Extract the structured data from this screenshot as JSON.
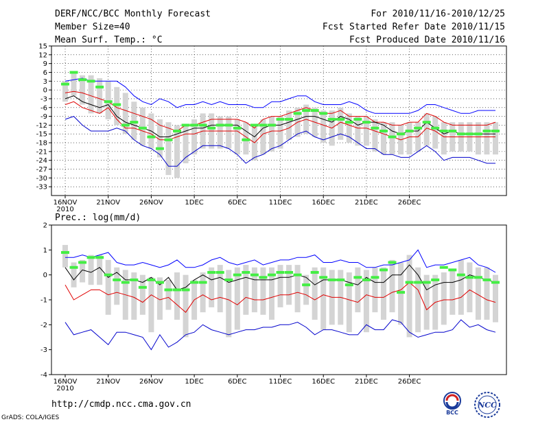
{
  "header": {
    "title": "DERF/NCC/BCC Monthly Forecast",
    "member_size": "Member Size=40",
    "variable": "Mean Surf. Temp.: °C",
    "period": "For 2010/11/16-2010/12/25",
    "start_date": "Fcst Started Refer Date 2010/11/15",
    "produced_date": "Fcst Produced Date 2010/11/16"
  },
  "footer": {
    "url": "http://cmdp.ncc.cma.gov.cn",
    "grads": "GrADS: COLA/IGES",
    "logo_bcc": "BCC",
    "logo_ncc": "NCC"
  },
  "colors": {
    "max_line": "#0000ff",
    "min_line": "#0000cc",
    "upper_line": "#e00000",
    "mean_line": "#000000",
    "obs_mark": "#44ee44",
    "box": "#d4d4d4"
  },
  "chart_data": [
    {
      "type": "line",
      "title": "Mean Surf. Temp.: °C",
      "x_tick_labels": [
        "16NOV",
        "21NOV",
        "26NOV",
        "1DEC",
        "6DEC",
        "11DEC",
        "16DEC",
        "21DEC",
        "26DEC"
      ],
      "x_year_label": "2010",
      "ylim": [
        -36,
        15
      ],
      "yticks": [
        15,
        12,
        9,
        6,
        3,
        0,
        -3,
        -6,
        -9,
        -12,
        -15,
        -18,
        -21,
        -24,
        -27,
        -30,
        -33
      ],
      "grid": true,
      "series": [
        {
          "name": "max",
          "values": [
            3,
            3.5,
            4,
            3,
            3,
            3,
            3,
            1,
            -2,
            -4,
            -5,
            -3,
            -4,
            -6,
            -5,
            -5,
            -4,
            -5,
            -4,
            -5,
            -5,
            -5,
            -6,
            -6,
            -4,
            -4,
            -3,
            -2,
            -2,
            -4,
            -5,
            -5,
            -5,
            -4,
            -5,
            -7,
            -8,
            -8,
            -8,
            -8,
            -8,
            -7,
            -5,
            -5,
            -6,
            -7,
            -8,
            -8,
            -7,
            -7,
            -7
          ]
        },
        {
          "name": "upper",
          "values": [
            -1,
            -0.5,
            -1,
            -2,
            -3,
            -4,
            -6,
            -7,
            -8,
            -9,
            -10,
            -12,
            -13,
            -14,
            -12,
            -12,
            -11,
            -10,
            -10,
            -10,
            -10,
            -11,
            -13,
            -10,
            -9,
            -9,
            -8,
            -7,
            -6,
            -7,
            -8,
            -8,
            -7,
            -9,
            -9,
            -9,
            -11,
            -11,
            -12,
            -12,
            -11,
            -11,
            -8,
            -9,
            -11,
            -12,
            -12,
            -12,
            -12,
            -12,
            -11
          ]
        },
        {
          "name": "mean",
          "values": [
            -3,
            -2,
            -4,
            -5,
            -6,
            -5,
            -9,
            -11,
            -12,
            -13,
            -14,
            -16,
            -16,
            -15,
            -14,
            -13,
            -13,
            -12,
            -12,
            -12,
            -12,
            -14,
            -16,
            -13,
            -12,
            -12,
            -11,
            -10,
            -9,
            -9,
            -10,
            -11,
            -9,
            -10,
            -12,
            -11,
            -11,
            -12,
            -14,
            -15,
            -14,
            -14,
            -11,
            -13,
            -15,
            -14,
            -15,
            -15,
            -15,
            -15,
            -15
          ]
        },
        {
          "name": "lower",
          "values": [
            -5,
            -4,
            -6,
            -7,
            -8,
            -6,
            -10,
            -13,
            -13,
            -14,
            -15,
            -17,
            -17,
            -16,
            -15,
            -15,
            -14,
            -14,
            -14,
            -14,
            -14,
            -16,
            -18,
            -15,
            -14,
            -14,
            -13,
            -11,
            -10,
            -11,
            -12,
            -13,
            -11,
            -12,
            -13,
            -13,
            -14,
            -15,
            -16,
            -17,
            -16,
            -16,
            -13,
            -14,
            -16,
            -16,
            -16,
            -16,
            -16,
            -16,
            -16
          ]
        },
        {
          "name": "min",
          "values": [
            -10,
            -9,
            -12,
            -14,
            -14,
            -14,
            -13,
            -14,
            -17,
            -19,
            -20,
            -22,
            -26,
            -26,
            -23,
            -21,
            -19,
            -19,
            -19,
            -20,
            -22,
            -25,
            -23,
            -22,
            -20,
            -19,
            -17,
            -15,
            -14,
            -16,
            -17,
            -16,
            -15,
            -16,
            -18,
            -20,
            -20,
            -22,
            -22,
            -23,
            -23,
            -21,
            -19,
            -21,
            -24,
            -23,
            -23,
            -23,
            -24,
            -25,
            -25
          ]
        },
        {
          "name": "observed",
          "values": [
            2,
            6,
            3.5,
            3,
            1,
            -4,
            -5,
            -12,
            -11,
            -13,
            -16,
            -20,
            -17,
            -14,
            -12,
            -12,
            -12,
            -13,
            -12,
            -12,
            -13,
            -17,
            -12,
            -12,
            -12,
            -10,
            -10,
            -8,
            -7,
            -7,
            -8,
            -10,
            -10,
            -11,
            -10,
            -11,
            -13,
            -14,
            -16,
            -15,
            -14,
            -13,
            -11,
            -13,
            -14,
            -14,
            -15,
            -15,
            -15,
            -14,
            -14
          ]
        }
      ],
      "box_ranges": [
        [
          3,
          -4
        ],
        [
          6,
          -2
        ],
        [
          5,
          -5
        ],
        [
          5,
          -8
        ],
        [
          4,
          -8
        ],
        [
          3,
          -10
        ],
        [
          1,
          -12
        ],
        [
          -1,
          -15
        ],
        [
          -4,
          -17
        ],
        [
          -6,
          -19
        ],
        [
          -8,
          -20
        ],
        [
          -10,
          -23
        ],
        [
          -11,
          -29
        ],
        [
          -12,
          -30
        ],
        [
          -12,
          -25
        ],
        [
          -10,
          -22
        ],
        [
          -8,
          -20
        ],
        [
          -8,
          -20
        ],
        [
          -9,
          -20
        ],
        [
          -9,
          -20
        ],
        [
          -10,
          -22
        ],
        [
          -11,
          -22
        ],
        [
          -12,
          -24
        ],
        [
          -10,
          -22
        ],
        [
          -9,
          -21
        ],
        [
          -9,
          -20
        ],
        [
          -7,
          -17
        ],
        [
          -6,
          -16
        ],
        [
          -5,
          -15
        ],
        [
          -6,
          -16
        ],
        [
          -7,
          -18
        ],
        [
          -7,
          -19
        ],
        [
          -6,
          -17
        ],
        [
          -8,
          -18
        ],
        [
          -9,
          -19
        ],
        [
          -9,
          -19
        ],
        [
          -10,
          -21
        ],
        [
          -11,
          -22
        ],
        [
          -11,
          -22
        ],
        [
          -12,
          -22
        ],
        [
          -11,
          -22
        ],
        [
          -11,
          -21
        ],
        [
          -8,
          -19
        ],
        [
          -9,
          -20
        ],
        [
          -11,
          -22
        ],
        [
          -11,
          -21
        ],
        [
          -11,
          -21
        ],
        [
          -11,
          -21
        ],
        [
          -11,
          -22
        ],
        [
          -11,
          -22
        ],
        [
          -11,
          -22
        ]
      ]
    },
    {
      "type": "line",
      "title": "Prec.: log(mm/d)",
      "x_tick_labels": [
        "16NOV",
        "21NOV",
        "26NOV",
        "1DEC",
        "6DEC",
        "11DEC",
        "16DEC",
        "21DEC",
        "26DEC"
      ],
      "x_year_label": "2010",
      "ylim": [
        -4,
        2
      ],
      "yticks": [
        2,
        1,
        0,
        -1,
        -2,
        -3,
        -4
      ],
      "grid": false,
      "series": [
        {
          "name": "max",
          "values": [
            0.7,
            0.7,
            0.8,
            0.7,
            0.8,
            0.9,
            0.5,
            0.4,
            0.4,
            0.5,
            0.4,
            0.3,
            0.4,
            0.6,
            0.3,
            0.3,
            0.4,
            0.6,
            0.7,
            0.5,
            0.4,
            0.5,
            0.6,
            0.4,
            0.5,
            0.6,
            0.6,
            0.7,
            0.7,
            0.8,
            0.5,
            0.5,
            0.6,
            0.5,
            0.5,
            0.3,
            0.3,
            0.4,
            0.4,
            0.5,
            0.6,
            1.0,
            0.3,
            0.4,
            0.4,
            0.5,
            0.6,
            0.7,
            0.4,
            0.3,
            0.1
          ]
        },
        {
          "name": "mean",
          "values": [
            0.3,
            -0.2,
            0.2,
            0.1,
            0.3,
            -0.1,
            0.1,
            -0.2,
            -0.2,
            -0.3,
            -0.1,
            -0.4,
            -0.1,
            -0.6,
            -0.5,
            -0.2,
            0.0,
            -0.2,
            -0.1,
            -0.3,
            -0.2,
            -0.1,
            -0.2,
            -0.2,
            -0.2,
            -0.1,
            -0.1,
            0.0,
            -0.1,
            -0.4,
            -0.2,
            -0.2,
            -0.2,
            -0.3,
            -0.4,
            -0.1,
            -0.3,
            -0.3,
            0.0,
            0.0,
            0.4,
            0.0,
            -0.6,
            -0.4,
            -0.3,
            -0.3,
            -0.2,
            0.0,
            -0.1,
            -0.2,
            -0.3
          ]
        },
        {
          "name": "lower",
          "values": [
            -0.4,
            -1.0,
            -0.8,
            -0.6,
            -0.6,
            -0.8,
            -0.7,
            -0.8,
            -0.9,
            -1.1,
            -0.8,
            -1.0,
            -0.9,
            -1.2,
            -1.5,
            -1.0,
            -0.8,
            -1.0,
            -0.9,
            -1.0,
            -1.2,
            -0.9,
            -1.0,
            -1.0,
            -0.9,
            -0.8,
            -0.8,
            -0.7,
            -0.8,
            -1.0,
            -0.8,
            -0.9,
            -0.9,
            -1.0,
            -1.1,
            -0.8,
            -0.9,
            -0.9,
            -0.7,
            -0.6,
            -0.3,
            -0.6,
            -1.4,
            -1.1,
            -1.0,
            -1.0,
            -0.9,
            -0.6,
            -0.8,
            -1.0,
            -1.1
          ]
        },
        {
          "name": "min",
          "values": [
            -1.9,
            -2.4,
            -2.3,
            -2.2,
            -2.5,
            -2.8,
            -2.3,
            -2.3,
            -2.4,
            -2.5,
            -3.0,
            -2.4,
            -2.9,
            -2.7,
            -2.4,
            -2.3,
            -2.0,
            -2.2,
            -2.3,
            -2.4,
            -2.3,
            -2.2,
            -2.2,
            -2.1,
            -2.1,
            -2.0,
            -2.0,
            -1.9,
            -2.1,
            -2.4,
            -2.2,
            -2.2,
            -2.3,
            -2.4,
            -2.4,
            -2.0,
            -2.2,
            -2.2,
            -1.8,
            -1.9,
            -2.3,
            -2.5,
            -2.4,
            -2.3,
            -2.3,
            -2.2,
            -1.8,
            -2.1,
            -2.0,
            -2.2,
            -2.3
          ]
        },
        {
          "name": "observed",
          "values": [
            0.9,
            0.3,
            0.5,
            0.7,
            0.7,
            0.0,
            -0.2,
            -0.3,
            -0.2,
            -0.5,
            -0.2,
            -0.3,
            -0.6,
            -0.6,
            -0.6,
            -0.3,
            -0.3,
            0.1,
            0.1,
            -0.2,
            0.0,
            0.1,
            0.0,
            -0.1,
            0.0,
            0.1,
            0.1,
            0.0,
            -0.4,
            0.1,
            -0.1,
            -0.2,
            -0.2,
            -0.4,
            -0.1,
            -0.2,
            -0.1,
            0.2,
            0.5,
            -0.7,
            -0.3,
            -0.3,
            -0.3,
            -0.2,
            0.3,
            0.2,
            0.0,
            -0.1,
            -0.1,
            -0.2,
            -0.3
          ]
        }
      ],
      "box_ranges": [
        [
          1.2,
          0.3
        ],
        [
          0.5,
          -0.5
        ],
        [
          0.6,
          -0.3
        ],
        [
          0.8,
          -0.4
        ],
        [
          0.8,
          -0.4
        ],
        [
          0.6,
          -1.6
        ],
        [
          0.3,
          -1.2
        ],
        [
          0.2,
          -1.8
        ],
        [
          0.1,
          -1.8
        ],
        [
          0.0,
          -1.6
        ],
        [
          -0.1,
          -2.3
        ],
        [
          -0.1,
          -1.8
        ],
        [
          -0.2,
          -1.4
        ],
        [
          0.1,
          -1.8
        ],
        [
          0.0,
          -2.5
        ],
        [
          -0.2,
          -1.8
        ],
        [
          0.1,
          -1.5
        ],
        [
          0.3,
          -1.3
        ],
        [
          0.4,
          -1.5
        ],
        [
          0.2,
          -2.5
        ],
        [
          0.3,
          -2.2
        ],
        [
          0.4,
          -1.6
        ],
        [
          0.3,
          -1.5
        ],
        [
          0.3,
          -1.6
        ],
        [
          0.3,
          -1.8
        ],
        [
          0.4,
          -1.3
        ],
        [
          0.4,
          -1.2
        ],
        [
          0.4,
          -1.5
        ],
        [
          0.0,
          -1.2
        ],
        [
          0.3,
          -1.8
        ],
        [
          0.3,
          -2.2
        ],
        [
          0.2,
          -2.0
        ],
        [
          0.2,
          -2.0
        ],
        [
          0.1,
          -2.3
        ],
        [
          0.3,
          -1.5
        ],
        [
          0.2,
          -2.3
        ],
        [
          0.3,
          -1.5
        ],
        [
          0.3,
          -1.8
        ],
        [
          0.6,
          -1.5
        ],
        [
          0.5,
          -2.0
        ],
        [
          0.8,
          -2.5
        ],
        [
          0.3,
          -2.3
        ],
        [
          0.0,
          -2.2
        ],
        [
          0.0,
          -2.2
        ],
        [
          0.1,
          -2.0
        ],
        [
          0.2,
          -1.6
        ],
        [
          0.6,
          -1.6
        ],
        [
          0.5,
          -1.5
        ],
        [
          0.3,
          -1.8
        ],
        [
          0.3,
          -1.8
        ],
        [
          0.0,
          -1.9
        ]
      ]
    }
  ]
}
